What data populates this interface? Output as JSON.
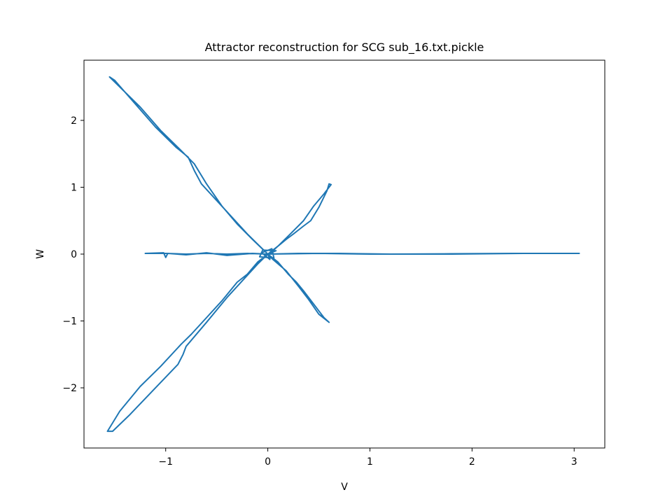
{
  "chart_data": {
    "type": "line",
    "title": "Attractor reconstruction for SCG sub_16.txt.pickle",
    "xlabel": "V",
    "ylabel": "W",
    "xlim": [
      -1.8,
      3.3
    ],
    "ylim": [
      -2.9,
      2.9
    ],
    "x_ticks": [
      -1,
      0,
      1,
      2,
      3
    ],
    "x_tick_labels": [
      "−1",
      "0",
      "1",
      "2",
      "3"
    ],
    "y_ticks": [
      -2,
      -1,
      0,
      1,
      2
    ],
    "y_tick_labels": [
      "−2",
      "−1",
      "0",
      "1",
      "2"
    ],
    "grid": false,
    "line_color": "#1f77b4",
    "series": [
      {
        "name": "",
        "points": [
          [
            0.0,
            0.0
          ],
          [
            0.05,
            0.05
          ],
          [
            0.1,
            0.12
          ],
          [
            0.18,
            0.22
          ],
          [
            0.25,
            0.3
          ],
          [
            0.3,
            0.36
          ],
          [
            0.35,
            0.42
          ],
          [
            0.42,
            0.5
          ],
          [
            0.5,
            0.7
          ],
          [
            0.58,
            0.95
          ],
          [
            0.6,
            1.05
          ],
          [
            0.62,
            1.04
          ],
          [
            0.55,
            0.9
          ],
          [
            0.45,
            0.72
          ],
          [
            0.35,
            0.5
          ],
          [
            0.22,
            0.3
          ],
          [
            0.1,
            0.12
          ],
          [
            0.0,
            0.0
          ],
          [
            -0.1,
            0.15
          ],
          [
            -0.2,
            0.3
          ],
          [
            -0.35,
            0.55
          ],
          [
            -0.5,
            0.8
          ],
          [
            -0.65,
            1.05
          ],
          [
            -0.72,
            1.25
          ],
          [
            -0.78,
            1.45
          ],
          [
            -0.9,
            1.6
          ],
          [
            -1.1,
            1.9
          ],
          [
            -1.3,
            2.25
          ],
          [
            -1.5,
            2.6
          ],
          [
            -1.55,
            2.65
          ],
          [
            -1.45,
            2.5
          ],
          [
            -1.25,
            2.2
          ],
          [
            -1.05,
            1.85
          ],
          [
            -0.85,
            1.55
          ],
          [
            -0.72,
            1.35
          ],
          [
            -0.6,
            1.05
          ],
          [
            -0.45,
            0.72
          ],
          [
            -0.3,
            0.45
          ],
          [
            -0.15,
            0.22
          ],
          [
            0.0,
            0.0
          ],
          [
            0.1,
            -0.12
          ],
          [
            0.2,
            -0.3
          ],
          [
            0.28,
            -0.42
          ],
          [
            0.35,
            -0.55
          ],
          [
            0.45,
            -0.75
          ],
          [
            0.5,
            -0.85
          ],
          [
            0.55,
            -0.95
          ],
          [
            0.6,
            -1.02
          ],
          [
            0.5,
            -0.9
          ],
          [
            0.4,
            -0.68
          ],
          [
            0.3,
            -0.48
          ],
          [
            0.18,
            -0.25
          ],
          [
            0.05,
            -0.08
          ],
          [
            0.0,
            0.0
          ],
          [
            -0.1,
            -0.12
          ],
          [
            -0.2,
            -0.3
          ],
          [
            -0.3,
            -0.42
          ],
          [
            -0.45,
            -0.7
          ],
          [
            -0.6,
            -0.95
          ],
          [
            -0.75,
            -1.2
          ],
          [
            -0.85,
            -1.35
          ],
          [
            -1.05,
            -1.68
          ],
          [
            -1.25,
            -1.98
          ],
          [
            -1.45,
            -2.35
          ],
          [
            -1.57,
            -2.65
          ],
          [
            -1.52,
            -2.65
          ],
          [
            -1.35,
            -2.4
          ],
          [
            -1.1,
            -2.0
          ],
          [
            -0.88,
            -1.65
          ],
          [
            -0.83,
            -1.5
          ],
          [
            -0.8,
            -1.38
          ],
          [
            -0.6,
            -1.02
          ],
          [
            -0.4,
            -0.65
          ],
          [
            -0.25,
            -0.4
          ],
          [
            -0.1,
            -0.15
          ],
          [
            0.0,
            0.0
          ],
          [
            -0.15,
            0.01
          ],
          [
            -0.4,
            -0.02
          ],
          [
            -0.6,
            0.02
          ],
          [
            -0.8,
            -0.01
          ],
          [
            -0.98,
            0.01
          ],
          [
            -1.0,
            -0.05
          ],
          [
            -1.02,
            0.02
          ],
          [
            -1.2,
            0.01
          ],
          [
            -1.0,
            0.01
          ],
          [
            -0.8,
            0.0
          ],
          [
            -0.6,
            0.01
          ],
          [
            -0.4,
            0.0
          ],
          [
            -0.2,
            0.01
          ],
          [
            0.0,
            0.0
          ],
          [
            0.3,
            0.01
          ],
          [
            0.7,
            0.01
          ],
          [
            1.2,
            0.0
          ],
          [
            1.8,
            0.005
          ],
          [
            2.4,
            0.01
          ],
          [
            3.05,
            0.01
          ],
          [
            2.5,
            0.01
          ],
          [
            1.8,
            0.0
          ],
          [
            1.0,
            0.0
          ],
          [
            0.5,
            0.01
          ],
          [
            0.0,
            0.0
          ],
          [
            0.08,
            0.05
          ],
          [
            -0.05,
            0.06
          ],
          [
            -0.08,
            -0.04
          ],
          [
            0.06,
            -0.06
          ],
          [
            0.04,
            0.08
          ],
          [
            -0.06,
            0.02
          ],
          [
            0.02,
            -0.08
          ],
          [
            0.0,
            0.0
          ]
        ]
      }
    ]
  }
}
